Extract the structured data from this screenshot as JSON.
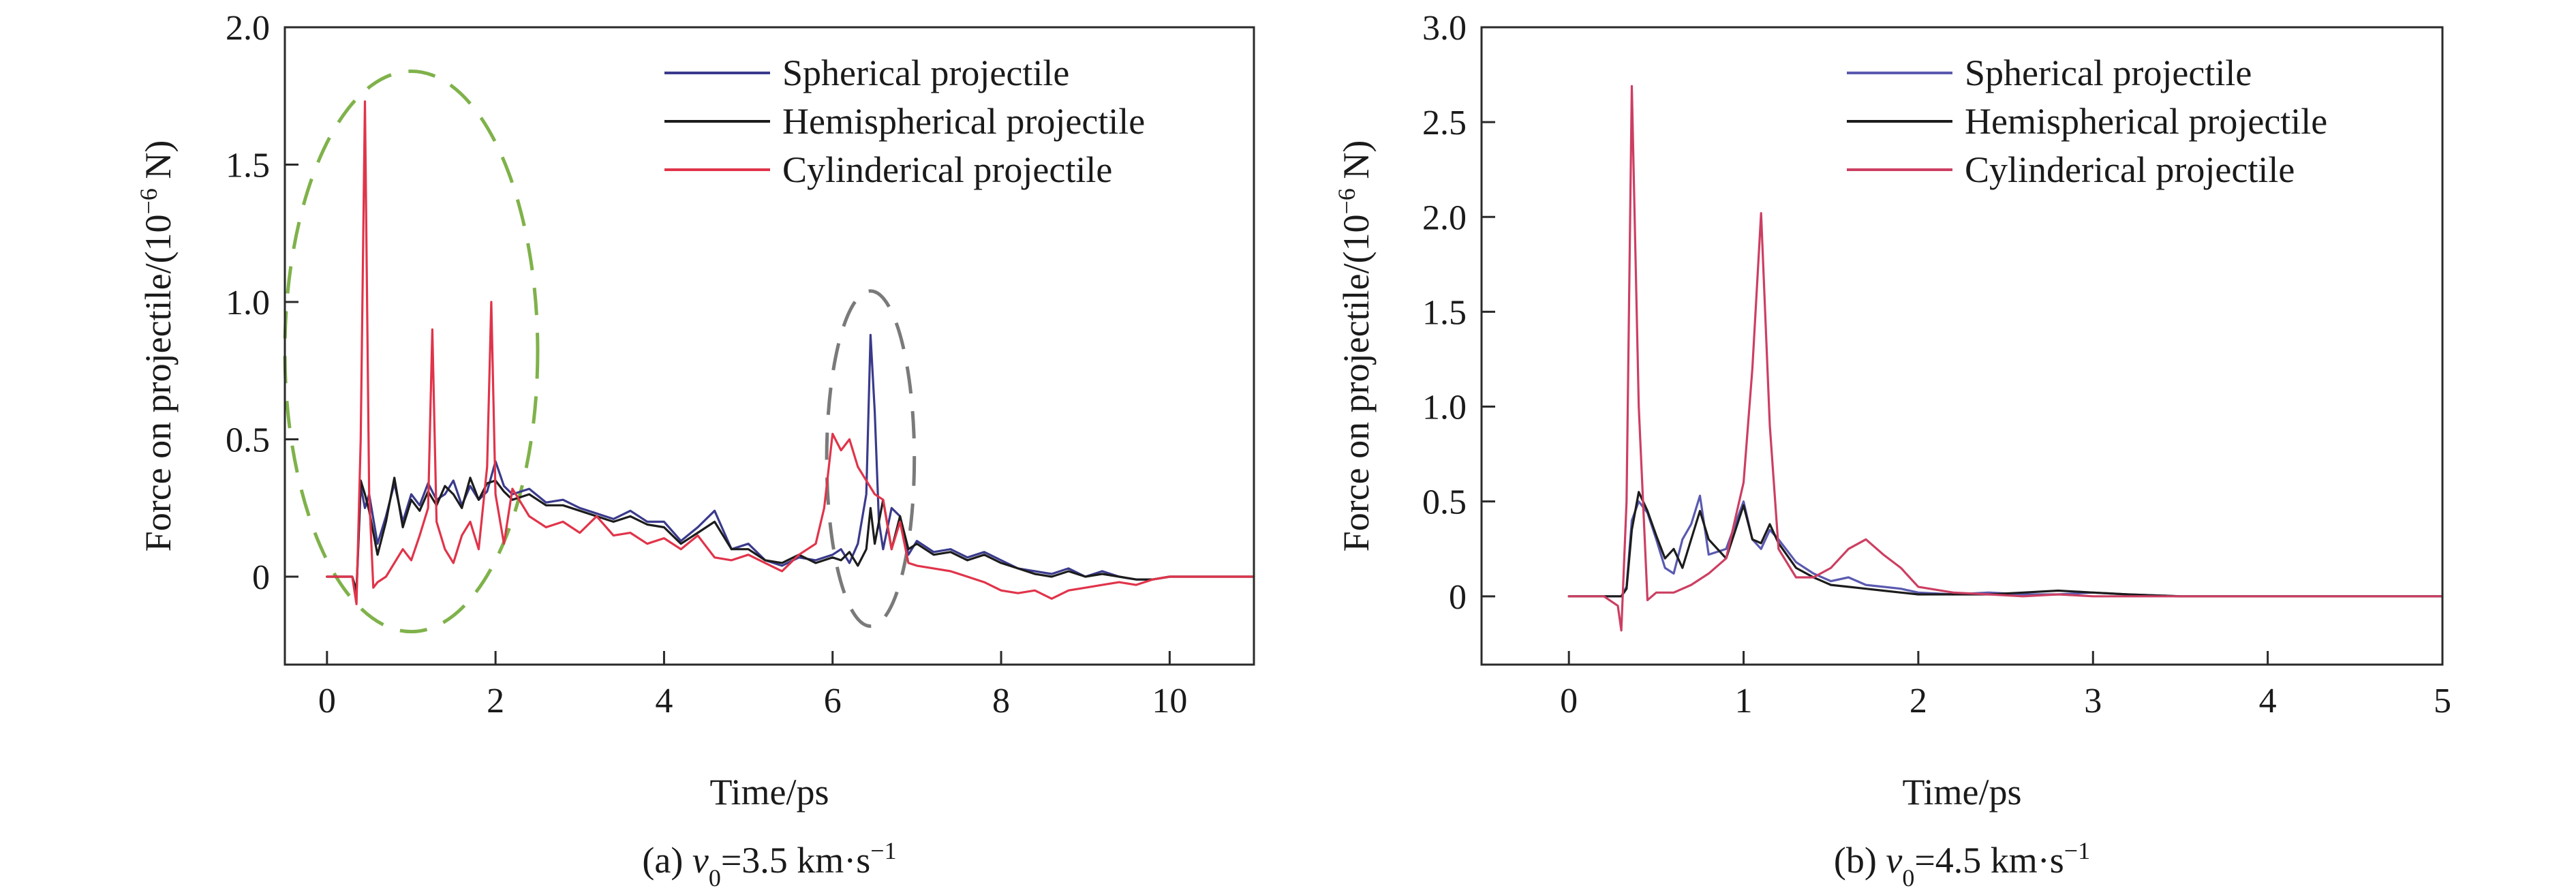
{
  "chart_data": [
    {
      "type": "line",
      "caption": {
        "prefix": "(a) ",
        "var": "v",
        "sub": "0",
        "eq": "=3.5 km·s",
        "sup": "−1"
      },
      "xlabel": "Time/ps",
      "ylabel": {
        "main": "Force on projectile/(10",
        "exp": "−6",
        "unit": " N)"
      },
      "xlim": [
        -0.5,
        11
      ],
      "ylim": [
        -0.32,
        2.0
      ],
      "xticks": [
        0,
        2,
        4,
        6,
        8,
        10
      ],
      "xtick_labels": [
        "0",
        "2",
        "4",
        "6",
        "8",
        "10"
      ],
      "yticks": [
        0,
        0.5,
        1.0,
        1.5,
        2.0
      ],
      "ytick_labels": [
        "0",
        "0.5",
        "1.0",
        "1.5",
        "2.0"
      ],
      "legend_position": "top-right",
      "annotations": [
        {
          "shape": "dashed-ellipse",
          "color": "#7fb24a",
          "cx": 1.0,
          "cy": 0.82,
          "rx": 1.5,
          "ry": 1.02
        },
        {
          "shape": "dashed-ellipse",
          "color": "#7a7a7a",
          "cx": 6.45,
          "cy": 0.43,
          "rx": 0.52,
          "ry": 0.61
        }
      ],
      "series": [
        {
          "name": "Spherical projectile",
          "color": "#3a3a8c",
          "x": [
            0.0,
            0.1,
            0.2,
            0.3,
            0.35,
            0.4,
            0.45,
            0.5,
            0.6,
            0.7,
            0.8,
            0.9,
            1.0,
            1.1,
            1.2,
            1.3,
            1.4,
            1.5,
            1.6,
            1.7,
            1.8,
            1.9,
            2.0,
            2.1,
            2.2,
            2.4,
            2.6,
            2.8,
            3.0,
            3.2,
            3.4,
            3.6,
            3.8,
            4.0,
            4.2,
            4.4,
            4.6,
            4.8,
            5.0,
            5.2,
            5.4,
            5.6,
            5.8,
            6.0,
            6.1,
            6.2,
            6.3,
            6.4,
            6.45,
            6.5,
            6.55,
            6.6,
            6.7,
            6.8,
            6.9,
            7.0,
            7.2,
            7.4,
            7.6,
            7.8,
            8.0,
            8.2,
            8.4,
            8.6,
            8.8,
            9.0,
            9.2,
            9.4,
            9.6,
            9.8,
            10.0,
            10.5,
            11.0
          ],
          "y": [
            0,
            0,
            0,
            0,
            -0.06,
            0.33,
            0.25,
            0.3,
            0.12,
            0.22,
            0.34,
            0.2,
            0.3,
            0.26,
            0.34,
            0.28,
            0.3,
            0.35,
            0.26,
            0.33,
            0.28,
            0.31,
            0.42,
            0.33,
            0.3,
            0.32,
            0.27,
            0.28,
            0.25,
            0.23,
            0.21,
            0.24,
            0.2,
            0.2,
            0.13,
            0.18,
            0.24,
            0.1,
            0.12,
            0.06,
            0.04,
            0.07,
            0.06,
            0.08,
            0.1,
            0.05,
            0.12,
            0.3,
            0.88,
            0.6,
            0.2,
            0.1,
            0.25,
            0.22,
            0.08,
            0.13,
            0.09,
            0.1,
            0.07,
            0.09,
            0.06,
            0.03,
            0.02,
            0.01,
            0.03,
            0.0,
            0.02,
            0.0,
            -0.01,
            -0.01,
            0.0,
            0.0,
            0.0
          ]
        },
        {
          "name": "Hemispherical projectile",
          "color": "#1c1c1c",
          "x": [
            0.0,
            0.1,
            0.2,
            0.3,
            0.35,
            0.4,
            0.45,
            0.5,
            0.6,
            0.7,
            0.8,
            0.9,
            1.0,
            1.1,
            1.2,
            1.3,
            1.4,
            1.5,
            1.6,
            1.7,
            1.8,
            1.9,
            2.0,
            2.1,
            2.2,
            2.4,
            2.6,
            2.8,
            3.0,
            3.2,
            3.4,
            3.6,
            3.8,
            4.0,
            4.2,
            4.4,
            4.6,
            4.8,
            5.0,
            5.2,
            5.4,
            5.6,
            5.8,
            6.0,
            6.1,
            6.2,
            6.3,
            6.4,
            6.45,
            6.5,
            6.55,
            6.6,
            6.7,
            6.8,
            6.9,
            7.0,
            7.2,
            7.4,
            7.6,
            7.8,
            8.0,
            8.2,
            8.4,
            8.6,
            8.8,
            9.0,
            9.2,
            9.4,
            9.6,
            9.8,
            10.0,
            10.5,
            11.0
          ],
          "y": [
            0,
            0,
            0,
            0,
            -0.05,
            0.35,
            0.3,
            0.24,
            0.08,
            0.2,
            0.36,
            0.18,
            0.28,
            0.24,
            0.31,
            0.26,
            0.33,
            0.3,
            0.25,
            0.36,
            0.28,
            0.34,
            0.35,
            0.31,
            0.28,
            0.3,
            0.26,
            0.26,
            0.24,
            0.22,
            0.2,
            0.22,
            0.19,
            0.18,
            0.12,
            0.16,
            0.2,
            0.1,
            0.1,
            0.06,
            0.05,
            0.08,
            0.05,
            0.07,
            0.06,
            0.09,
            0.04,
            0.1,
            0.25,
            0.12,
            0.2,
            0.28,
            0.1,
            0.22,
            0.1,
            0.12,
            0.08,
            0.09,
            0.06,
            0.08,
            0.05,
            0.03,
            0.01,
            0.0,
            0.02,
            0.0,
            0.01,
            0.0,
            -0.01,
            -0.01,
            0.0,
            0.0,
            0.0
          ]
        },
        {
          "name": "Cylinderical projectile",
          "color": "#e0344a",
          "x": [
            0.0,
            0.1,
            0.2,
            0.3,
            0.35,
            0.4,
            0.45,
            0.5,
            0.55,
            0.6,
            0.7,
            0.8,
            0.9,
            1.0,
            1.1,
            1.2,
            1.25,
            1.3,
            1.4,
            1.5,
            1.6,
            1.7,
            1.8,
            1.9,
            1.95,
            2.0,
            2.1,
            2.2,
            2.4,
            2.6,
            2.8,
            3.0,
            3.2,
            3.4,
            3.6,
            3.8,
            4.0,
            4.2,
            4.4,
            4.6,
            4.8,
            5.0,
            5.2,
            5.4,
            5.6,
            5.8,
            5.9,
            6.0,
            6.1,
            6.2,
            6.3,
            6.4,
            6.5,
            6.6,
            6.7,
            6.8,
            6.9,
            7.0,
            7.2,
            7.4,
            7.6,
            7.8,
            8.0,
            8.2,
            8.4,
            8.6,
            8.8,
            9.0,
            9.2,
            9.4,
            9.6,
            9.8,
            10.0,
            10.5,
            11.0
          ],
          "y": [
            0,
            0,
            0,
            0,
            -0.1,
            0.5,
            1.73,
            0.3,
            -0.04,
            -0.02,
            0.0,
            0.05,
            0.1,
            0.06,
            0.15,
            0.25,
            0.9,
            0.2,
            0.1,
            0.05,
            0.15,
            0.2,
            0.1,
            0.4,
            1.0,
            0.3,
            0.12,
            0.32,
            0.22,
            0.18,
            0.2,
            0.16,
            0.22,
            0.15,
            0.16,
            0.12,
            0.14,
            0.1,
            0.15,
            0.07,
            0.06,
            0.08,
            0.05,
            0.02,
            0.08,
            0.12,
            0.25,
            0.52,
            0.46,
            0.5,
            0.4,
            0.35,
            0.3,
            0.28,
            0.1,
            0.2,
            0.05,
            0.04,
            0.03,
            0.02,
            0.0,
            -0.02,
            -0.05,
            -0.06,
            -0.05,
            -0.08,
            -0.05,
            -0.04,
            -0.03,
            -0.02,
            -0.03,
            -0.01,
            0.0,
            0.0,
            0.0
          ]
        }
      ]
    },
    {
      "type": "line",
      "caption": {
        "prefix": "(b) ",
        "var": "v",
        "sub": "0",
        "eq": "=4.5 km·s",
        "sup": "−1"
      },
      "xlabel": "Time/ps",
      "ylabel": {
        "main": "Force on projectile/(10",
        "exp": "−6",
        "unit": " N)"
      },
      "xlim": [
        -0.5,
        5
      ],
      "ylim": [
        -0.36,
        3.0
      ],
      "xticks": [
        0,
        1,
        2,
        3,
        4,
        5
      ],
      "xtick_labels": [
        "0",
        "1",
        "2",
        "3",
        "4",
        "5"
      ],
      "yticks": [
        0,
        0.5,
        1.0,
        1.5,
        2.0,
        2.5,
        3.0
      ],
      "ytick_labels": [
        "0",
        "0.5",
        "1.0",
        "1.5",
        "2.0",
        "2.5",
        "3.0"
      ],
      "legend_position": "top-right",
      "series": [
        {
          "name": "Spherical projectile",
          "color": "#5a5ab0",
          "x": [
            0.0,
            0.1,
            0.2,
            0.3,
            0.33,
            0.36,
            0.4,
            0.45,
            0.5,
            0.55,
            0.6,
            0.65,
            0.7,
            0.75,
            0.8,
            0.9,
            1.0,
            1.05,
            1.1,
            1.15,
            1.2,
            1.3,
            1.4,
            1.5,
            1.6,
            1.7,
            1.8,
            1.9,
            2.0,
            2.2,
            2.4,
            2.6,
            2.8,
            3.0,
            3.2,
            3.5,
            4.0,
            4.5,
            5.0
          ],
          "y": [
            0,
            0,
            0,
            0,
            0.05,
            0.4,
            0.5,
            0.44,
            0.3,
            0.15,
            0.12,
            0.3,
            0.38,
            0.53,
            0.22,
            0.25,
            0.5,
            0.3,
            0.25,
            0.35,
            0.3,
            0.18,
            0.12,
            0.08,
            0.1,
            0.06,
            0.05,
            0.04,
            0.02,
            0.01,
            0.02,
            0.01,
            0.01,
            0.02,
            0.01,
            0.0,
            0.0,
            0.0,
            0.0
          ]
        },
        {
          "name": "Hemispherical projectile",
          "color": "#1c1c1c",
          "x": [
            0.0,
            0.1,
            0.2,
            0.3,
            0.33,
            0.36,
            0.4,
            0.45,
            0.5,
            0.55,
            0.6,
            0.65,
            0.7,
            0.75,
            0.8,
            0.9,
            1.0,
            1.05,
            1.1,
            1.15,
            1.2,
            1.3,
            1.4,
            1.5,
            1.6,
            1.7,
            1.8,
            1.9,
            2.0,
            2.2,
            2.4,
            2.6,
            2.8,
            3.0,
            3.2,
            3.5,
            4.0,
            4.5,
            5.0
          ],
          "y": [
            0,
            0,
            0,
            0,
            0.04,
            0.35,
            0.55,
            0.45,
            0.32,
            0.2,
            0.25,
            0.15,
            0.3,
            0.45,
            0.3,
            0.2,
            0.48,
            0.3,
            0.28,
            0.38,
            0.28,
            0.15,
            0.1,
            0.06,
            0.05,
            0.04,
            0.03,
            0.02,
            0.01,
            0.01,
            0.01,
            0.02,
            0.03,
            0.02,
            0.01,
            0.0,
            0.0,
            0.0,
            0.0
          ]
        },
        {
          "name": "Cylinderical projectile",
          "color": "#cc3f62",
          "x": [
            0.0,
            0.1,
            0.2,
            0.28,
            0.3,
            0.33,
            0.36,
            0.4,
            0.45,
            0.5,
            0.6,
            0.7,
            0.8,
            0.9,
            1.0,
            1.05,
            1.1,
            1.15,
            1.2,
            1.3,
            1.4,
            1.5,
            1.6,
            1.7,
            1.8,
            1.9,
            2.0,
            2.2,
            2.4,
            2.6,
            2.8,
            3.0,
            3.2,
            3.5,
            4.0,
            4.5,
            5.0
          ],
          "y": [
            0,
            0,
            0,
            -0.05,
            -0.18,
            0.5,
            2.69,
            1.0,
            -0.02,
            0.02,
            0.02,
            0.06,
            0.12,
            0.2,
            0.6,
            1.2,
            2.02,
            0.9,
            0.25,
            0.1,
            0.1,
            0.15,
            0.25,
            0.3,
            0.22,
            0.15,
            0.05,
            0.02,
            0.01,
            0.0,
            0.01,
            0.0,
            0.0,
            0.0,
            0.0,
            0.0,
            0.0
          ]
        }
      ]
    }
  ]
}
